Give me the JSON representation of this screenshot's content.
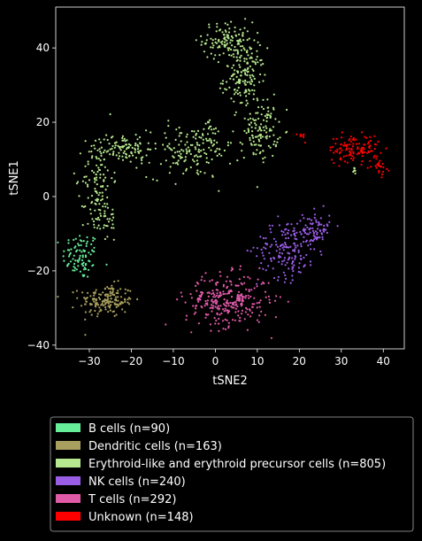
{
  "chart_data": {
    "type": "scatter",
    "title": "",
    "xlabel": "tSNE2",
    "ylabel": "tSNE1",
    "xlim": [
      -38,
      45
    ],
    "ylim": [
      -41,
      51
    ],
    "x_ticks": [
      -30,
      -20,
      -10,
      0,
      10,
      20,
      30,
      40
    ],
    "y_ticks": [
      -40,
      -20,
      0,
      20,
      40
    ],
    "grid": false,
    "legend_position": "bottom-outside",
    "series": [
      {
        "name": "B cells (n=90)",
        "color": "#66ee99",
        "n": 90,
        "clusters": [
          {
            "cx": -32,
            "cy": -16,
            "sx": 2.2,
            "sy": 3.2,
            "n": 90
          }
        ]
      },
      {
        "name": "Dendritic cells (n=163)",
        "color": "#a89f5e",
        "n": 163,
        "clusters": [
          {
            "cx": -26,
            "cy": -28,
            "sx": 3.2,
            "sy": 2.2,
            "n": 163
          }
        ]
      },
      {
        "name": "Erythroid-like and erythroid precursor cells (n=805)",
        "color": "#b6e890",
        "n": 805,
        "clusters": [
          {
            "cx": 3,
            "cy": 42,
            "sx": 3,
            "sy": 2.5,
            "n": 120
          },
          {
            "cx": 7,
            "cy": 32,
            "sx": 2.5,
            "sy": 4,
            "n": 150
          },
          {
            "cx": 11,
            "cy": 18,
            "sx": 2,
            "sy": 4,
            "n": 120
          },
          {
            "cx": -6,
            "cy": 12,
            "sx": 5,
            "sy": 3.5,
            "n": 150
          },
          {
            "cx": -22,
            "cy": 13,
            "sx": 3.5,
            "sy": 2,
            "n": 100
          },
          {
            "cx": -28,
            "cy": 5,
            "sx": 1.8,
            "sy": 5,
            "n": 90
          },
          {
            "cx": -27,
            "cy": -6,
            "sx": 2,
            "sy": 3,
            "n": 50
          },
          {
            "cx": 33,
            "cy": 7,
            "sx": 0.3,
            "sy": 0.5,
            "n": 8
          },
          {
            "cx": -1,
            "cy": 17,
            "sx": 1.2,
            "sy": 1.5,
            "n": 17
          }
        ]
      },
      {
        "name": "NK cells (n=240)",
        "color": "#9a5ee6",
        "n": 240,
        "clusters": [
          {
            "cx": 17,
            "cy": -14,
            "sx": 3.5,
            "sy": 4,
            "n": 160
          },
          {
            "cx": 24,
            "cy": -9,
            "sx": 1.6,
            "sy": 2.5,
            "n": 80
          }
        ]
      },
      {
        "name": "T cells (n=292)",
        "color": "#e05aa8",
        "n": 292,
        "clusters": [
          {
            "cx": 3,
            "cy": -28,
            "sx": 5,
            "sy": 3.5,
            "n": 292
          }
        ]
      },
      {
        "name": "Unknown (n=148)",
        "color": "#ff0000",
        "n": 148,
        "clusters": [
          {
            "cx": 33,
            "cy": 13,
            "sx": 3,
            "sy": 1.8,
            "n": 115
          },
          {
            "cx": 39,
            "cy": 8,
            "sx": 0.9,
            "sy": 1.2,
            "n": 25
          },
          {
            "cx": 20.5,
            "cy": 17,
            "sx": 0.6,
            "sy": 1,
            "n": 8
          }
        ]
      }
    ]
  }
}
